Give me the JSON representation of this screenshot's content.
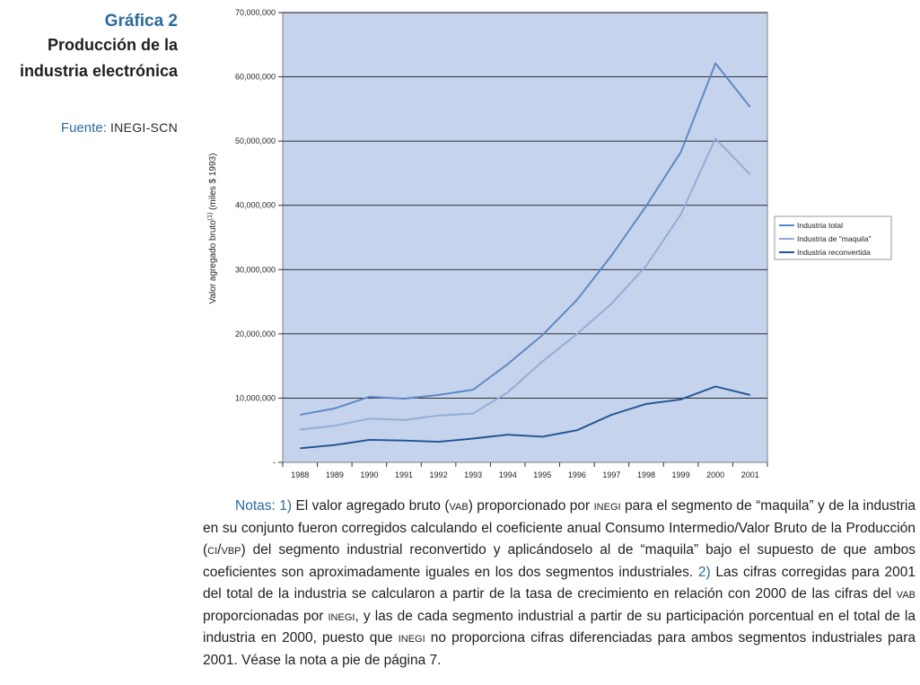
{
  "side": {
    "label": "Gráfica 2",
    "title_line1": "Producción de la",
    "title_line2": "industria electrónica",
    "source_label": "Fuente:",
    "source_value": "INEGI-SCN"
  },
  "chart_data": {
    "type": "line",
    "ylabel": "Valor agregado bruto",
    "ylabel_sup": "(1)",
    "ylabel_unit": "(miles $ 1993)",
    "x": [
      "1988",
      "1989",
      "1990",
      "1991",
      "1992",
      "1993",
      "1994",
      "1995",
      "1996",
      "1997",
      "1998",
      "1999",
      "2000",
      "2001"
    ],
    "ylim": [
      0,
      70000000
    ],
    "yticks": [
      {
        "value": 0,
        "label": "-"
      },
      {
        "value": 10000000,
        "label": "10,000,000"
      },
      {
        "value": 20000000,
        "label": "20,000,000"
      },
      {
        "value": 30000000,
        "label": "30,000,000"
      },
      {
        "value": 40000000,
        "label": "40,000,000"
      },
      {
        "value": 50000000,
        "label": "50,000,000"
      },
      {
        "value": 60000000,
        "label": "60,000,000"
      },
      {
        "value": 70000000,
        "label": "70,000,000"
      }
    ],
    "grid": true,
    "legend_position": "right",
    "plot_bg": "#c5d3ec",
    "series": [
      {
        "name": "Industria total",
        "color": "#5b86c4",
        "values": [
          7400000,
          8400000,
          10200000,
          9900000,
          10500000,
          11300000,
          15300000,
          19800000,
          25300000,
          32200000,
          39900000,
          48300000,
          62100000,
          55300000
        ]
      },
      {
        "name": "Industria de \"maquila\"",
        "color": "#92acd6",
        "values": [
          5100000,
          5700000,
          6800000,
          6600000,
          7300000,
          7600000,
          10900000,
          15700000,
          20000000,
          24700000,
          30600000,
          38600000,
          50400000,
          44800000
        ]
      },
      {
        "name": "Industria reconvertida",
        "color": "#1f5393",
        "values": [
          2200000,
          2700000,
          3500000,
          3400000,
          3200000,
          3700000,
          4300000,
          4000000,
          5000000,
          7400000,
          9100000,
          9800000,
          11800000,
          10500000
        ]
      }
    ]
  },
  "notes": {
    "label": "Notas:",
    "n1_num": "1)",
    "n1_a": " El valor agregado bruto (",
    "n1_vab": "vab",
    "n1_b": ") proporcionado por ",
    "n1_inegi": "inegi",
    "n1_c": " para el segmento de “maquila” y de la industria en su conjunto fueron corregidos calculando el coeficiente anual Consumo Intermedio/Valor Bruto de la Producción (",
    "n1_civbp": "ci/vbp",
    "n1_d": ") del segmento industrial reconvertido y aplicándoselo al de “maquila” bajo el supuesto de que ambos coeficientes son aproximadamente iguales en los dos segmentos industriales. ",
    "n2_num": "2)",
    "n2_a": " Las cifras corregidas para 2001 del total de la industria se calcularon a partir de la tasa de crecimiento en relación con 2000 de las cifras del ",
    "n2_vab": "vab",
    "n2_b": " proporcionadas por ",
    "n2_inegi": "inegi",
    "n2_c": ", y las de cada segmento industrial a partir de su participación porcentual en el total de la industria en 2000, puesto que ",
    "n2_inegi2": "inegi",
    "n2_d": " no proporciona cifras diferenciadas para ambos segmentos industriales para 2001. Véase la nota a pie de página 7."
  }
}
